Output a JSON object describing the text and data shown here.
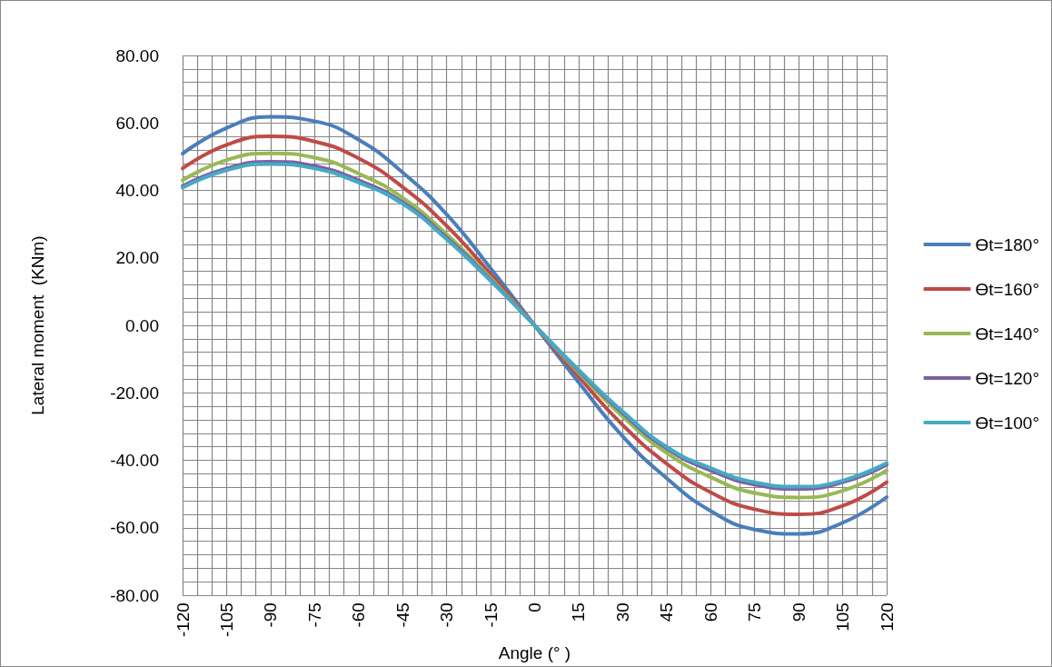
{
  "chart_data": {
    "type": "line",
    "xlabel": "Angle (° )",
    "ylabel": "Lateral moment  (KNm)",
    "x": [
      -120,
      -105,
      -90,
      -75,
      -60,
      -45,
      -30,
      -15,
      0,
      15,
      30,
      45,
      60,
      75,
      90,
      105,
      120
    ],
    "series": [
      {
        "name": "Ɵt=180°",
        "color": "#4a7ebb",
        "values": [
          50.9,
          58.5,
          61.8,
          60.5,
          55,
          45.3,
          32.9,
          16.9,
          0,
          -16.9,
          -32.9,
          -45.3,
          -55,
          -60.5,
          -61.8,
          -58.5,
          -50.9
        ]
      },
      {
        "name": "Ɵt=160°",
        "color": "#be4b48",
        "values": [
          46.5,
          53.5,
          56,
          54.5,
          49.5,
          41,
          29.5,
          15.2,
          0,
          -15.2,
          -29.5,
          -41,
          -49.5,
          -54.5,
          -56,
          -53.5,
          -46.5
        ]
      },
      {
        "name": "Ɵt=140°",
        "color": "#98b954",
        "values": [
          43,
          49,
          51,
          49.7,
          45,
          37.8,
          27,
          14,
          0,
          -14,
          -27,
          -37.8,
          -45,
          -49.7,
          -51,
          -49,
          -43
        ]
      },
      {
        "name": "Ɵt=120°",
        "color": "#7d60a0",
        "values": [
          41.3,
          46.5,
          48.5,
          47.2,
          43,
          36.5,
          26,
          13.5,
          0,
          -13.5,
          -26,
          -36.5,
          -43,
          -47.2,
          -48.5,
          -46.5,
          -41.3
        ]
      },
      {
        "name": "Ɵt=100°",
        "color": "#46aac5",
        "values": [
          40.8,
          46,
          47.8,
          46.5,
          42.3,
          36,
          25.5,
          13.2,
          0,
          -13.2,
          -25.5,
          -36,
          -42.3,
          -46.5,
          -47.8,
          -46,
          -40.8
        ]
      }
    ],
    "xlim": [
      -120,
      120
    ],
    "xticks": [
      -120,
      {
        "value": -115,
        "label": null
      },
      {
        "value": -110,
        "label": null
      },
      -105,
      {
        "value": -100,
        "label": null
      },
      {
        "value": -95,
        "label": null
      },
      -90,
      {
        "value": -85,
        "label": null
      },
      {
        "value": -80,
        "label": null
      },
      -75,
      {
        "value": -70,
        "label": null
      },
      {
        "value": -65,
        "label": null
      },
      -60,
      {
        "value": -55,
        "label": null
      },
      {
        "value": -50,
        "label": null
      },
      -45,
      {
        "value": -40,
        "label": null
      },
      {
        "value": -35,
        "label": null
      },
      -30,
      {
        "value": -25,
        "label": null
      },
      {
        "value": -20,
        "label": null
      },
      -15,
      {
        "value": -10,
        "label": null
      },
      {
        "value": -5,
        "label": null
      },
      0,
      {
        "value": 5,
        "label": null
      },
      {
        "value": 10,
        "label": null
      },
      15,
      {
        "value": 20,
        "label": null
      },
      {
        "value": 25,
        "label": null
      },
      30,
      {
        "value": 35,
        "label": null
      },
      {
        "value": 40,
        "label": null
      },
      45,
      {
        "value": 50,
        "label": null
      },
      {
        "value": 55,
        "label": null
      },
      60,
      {
        "value": 65,
        "label": null
      },
      {
        "value": 70,
        "label": null
      },
      75,
      {
        "value": 80,
        "label": null
      },
      {
        "value": 85,
        "label": null
      },
      90,
      {
        "value": 95,
        "label": null
      },
      {
        "value": 100,
        "label": null
      },
      105,
      {
        "value": 110,
        "label": null
      },
      {
        "value": 115,
        "label": null
      },
      120
    ],
    "ylim": [
      -80,
      80
    ],
    "yticks": [
      {
        "value": -80,
        "label": "-80.00"
      },
      {
        "value": -76,
        "label": null
      },
      {
        "value": -72,
        "label": null
      },
      {
        "value": -68,
        "label": null
      },
      {
        "value": -64,
        "label": null
      },
      {
        "value": -60,
        "label": "-60.00"
      },
      {
        "value": -56,
        "label": null
      },
      {
        "value": -52,
        "label": null
      },
      {
        "value": -48,
        "label": null
      },
      {
        "value": -44,
        "label": null
      },
      {
        "value": -40,
        "label": "-40.00"
      },
      {
        "value": -36,
        "label": null
      },
      {
        "value": -32,
        "label": null
      },
      {
        "value": -28,
        "label": null
      },
      {
        "value": -24,
        "label": null
      },
      {
        "value": -20,
        "label": "-20.00"
      },
      {
        "value": -16,
        "label": null
      },
      {
        "value": -12,
        "label": null
      },
      {
        "value": -8,
        "label": null
      },
      {
        "value": -4,
        "label": null
      },
      {
        "value": 0,
        "label": "0.00"
      },
      {
        "value": 4,
        "label": null
      },
      {
        "value": 8,
        "label": null
      },
      {
        "value": 12,
        "label": null
      },
      {
        "value": 16,
        "label": null
      },
      {
        "value": 20,
        "label": "20.00"
      },
      {
        "value": 24,
        "label": null
      },
      {
        "value": 28,
        "label": null
      },
      {
        "value": 32,
        "label": null
      },
      {
        "value": 36,
        "label": null
      },
      {
        "value": 40,
        "label": "40.00"
      },
      {
        "value": 44,
        "label": null
      },
      {
        "value": 48,
        "label": null
      },
      {
        "value": 52,
        "label": null
      },
      {
        "value": 56,
        "label": null
      },
      {
        "value": 60,
        "label": "60.00"
      },
      {
        "value": 64,
        "label": null
      },
      {
        "value": 68,
        "label": null
      },
      {
        "value": 72,
        "label": null
      },
      {
        "value": 76,
        "label": null
      },
      {
        "value": 80,
        "label": "80.00"
      }
    ],
    "grid": true,
    "legend": "right",
    "marker": "none",
    "line_style": "solid"
  }
}
